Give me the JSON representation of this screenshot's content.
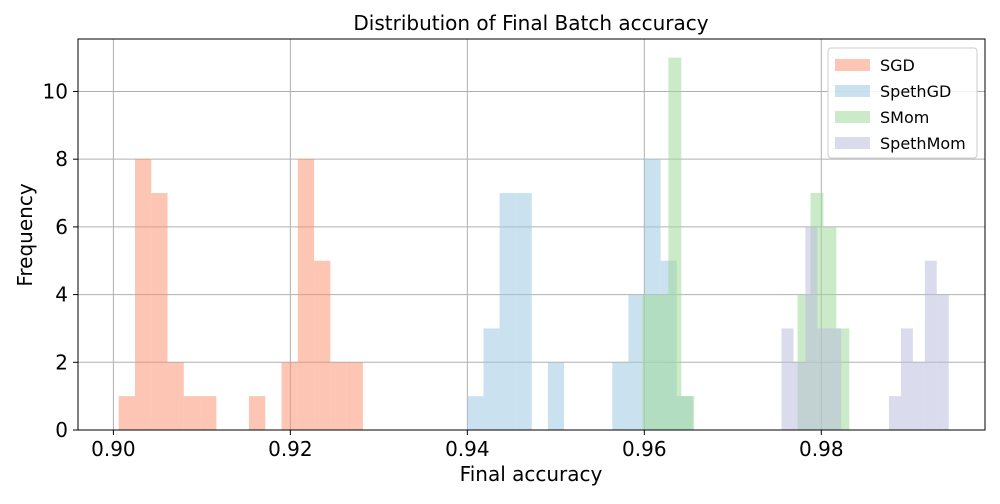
{
  "chart_data": {
    "type": "histogram",
    "title": "Distribution of Final Batch accuracy",
    "xlabel": "Final accuracy",
    "ylabel": "Frequency",
    "xlim": [
      0.896,
      0.9985
    ],
    "ylim": [
      0,
      11.55
    ],
    "x_ticks": [
      0.9,
      0.92,
      0.94,
      0.96,
      0.98
    ],
    "x_tick_labels": [
      "0.90",
      "0.92",
      "0.94",
      "0.96",
      "0.98"
    ],
    "y_ticks": [
      0,
      2,
      4,
      6,
      8,
      10
    ],
    "y_tick_labels": [
      "0",
      "2",
      "4",
      "6",
      "8",
      "10"
    ],
    "grid": true,
    "legend_position": "top-right",
    "series": [
      {
        "name": "SGD",
        "color": "#FC8D6A",
        "alpha": 0.5,
        "bin_start": 0.9006,
        "bin_width": 0.00184,
        "counts": [
          1,
          8,
          7,
          2,
          1,
          1,
          0,
          0,
          1,
          0,
          2,
          8,
          5,
          2,
          2
        ]
      },
      {
        "name": "SpethGD",
        "color": "#9ECAE1",
        "alpha": 0.55,
        "bin_start": 0.94,
        "bin_width": 0.00182,
        "counts": [
          1,
          3,
          7,
          7,
          0,
          2,
          0,
          0,
          0,
          2,
          4,
          8,
          5,
          1
        ]
      },
      {
        "name": "SMom",
        "color": "#A1D99B",
        "alpha": 0.55,
        "bin_start": 0.9598,
        "bin_width": 0.00146,
        "counts": [
          4,
          4,
          11,
          1,
          0,
          0,
          0,
          0,
          0,
          0,
          0,
          0,
          4,
          7,
          6,
          3
        ]
      },
      {
        "name": "SpethMom",
        "color": "#BCBDDC",
        "alpha": 0.55,
        "bin_start": 0.9755,
        "bin_width": 0.00135,
        "counts": [
          3,
          2,
          6,
          3,
          3,
          0,
          0,
          0,
          0,
          1,
          3,
          2,
          5,
          4
        ]
      }
    ]
  }
}
